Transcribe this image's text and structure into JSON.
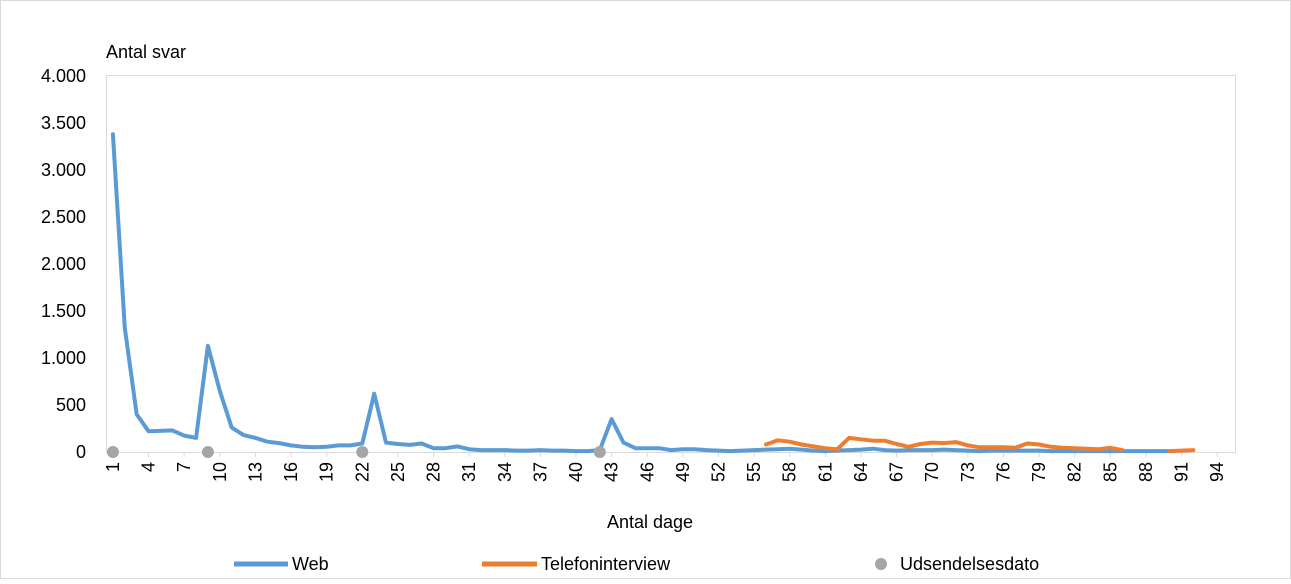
{
  "chart_data": {
    "type": "line",
    "ylabel": "Antal svar",
    "xlabel": "Antal dage",
    "ylim": [
      0,
      4000
    ],
    "yticks": [
      0,
      500,
      1000,
      1500,
      2000,
      2500,
      3000,
      3500,
      4000
    ],
    "ytick_labels": [
      "0",
      "500",
      "1.000",
      "1.500",
      "2.000",
      "2.500",
      "3.000",
      "3.500",
      "4.000"
    ],
    "xlim": [
      1,
      95
    ],
    "xticks": [
      1,
      4,
      7,
      10,
      13,
      16,
      19,
      22,
      25,
      28,
      31,
      34,
      37,
      40,
      43,
      46,
      49,
      52,
      55,
      58,
      61,
      64,
      67,
      70,
      73,
      76,
      79,
      82,
      85,
      88,
      91,
      94
    ],
    "grid": false,
    "legend": "bottom",
    "series": [
      {
        "name": "Web",
        "color": "#5B9BD5",
        "x": [
          1,
          2,
          3,
          4,
          5,
          6,
          7,
          8,
          9,
          10,
          11,
          12,
          13,
          14,
          15,
          16,
          17,
          18,
          19,
          20,
          21,
          22,
          23,
          24,
          25,
          26,
          27,
          28,
          29,
          30,
          31,
          32,
          33,
          34,
          35,
          36,
          37,
          38,
          39,
          40,
          41,
          42,
          43,
          44,
          45,
          46,
          47,
          48,
          49,
          50,
          51,
          52,
          53,
          54,
          55,
          56,
          57,
          58,
          59,
          60,
          61,
          62,
          63,
          64,
          65,
          66,
          67,
          68,
          69,
          70,
          71,
          72,
          73,
          74,
          75,
          76,
          77,
          78,
          79,
          80,
          81,
          82,
          83,
          84,
          85,
          86,
          87,
          88,
          89,
          90
        ],
        "y": [
          3380,
          1320,
          400,
          220,
          225,
          230,
          175,
          150,
          1130,
          650,
          260,
          180,
          150,
          110,
          95,
          70,
          55,
          50,
          55,
          70,
          70,
          90,
          620,
          100,
          85,
          75,
          90,
          40,
          40,
          60,
          30,
          20,
          20,
          20,
          15,
          15,
          20,
          15,
          15,
          10,
          10,
          20,
          350,
          100,
          40,
          40,
          40,
          20,
          30,
          30,
          20,
          15,
          10,
          15,
          20,
          25,
          30,
          35,
          25,
          15,
          10,
          15,
          20,
          25,
          35,
          20,
          15,
          20,
          20,
          20,
          25,
          20,
          15,
          10,
          15,
          15,
          15,
          15,
          15,
          10,
          10,
          10,
          10,
          10,
          10,
          10,
          10,
          10,
          10,
          10
        ]
      },
      {
        "name": "Telefoninterview",
        "color": "#ED7D31",
        "segments": [
          {
            "x": [
              56,
              57,
              58,
              59,
              60,
              61,
              62,
              63,
              64,
              65,
              66,
              67,
              68,
              69,
              70,
              71,
              72,
              73,
              74,
              75,
              76,
              77,
              78,
              79,
              80,
              81,
              82,
              83,
              84,
              85,
              86
            ],
            "y": [
              80,
              125,
              110,
              80,
              60,
              40,
              30,
              150,
              135,
              120,
              120,
              85,
              55,
              85,
              100,
              95,
              105,
              70,
              50,
              50,
              50,
              45,
              90,
              80,
              55,
              45,
              40,
              35,
              30,
              45,
              20
            ]
          },
          {
            "x": [
              90,
              91,
              92
            ],
            "y": [
              10,
              15,
              20
            ]
          }
        ]
      },
      {
        "name": "Udsendelsesdato",
        "color": "#A5A5A5",
        "marker": "circle",
        "x": [
          1,
          9,
          22,
          42
        ],
        "y": [
          0,
          0,
          0,
          0
        ]
      }
    ]
  }
}
